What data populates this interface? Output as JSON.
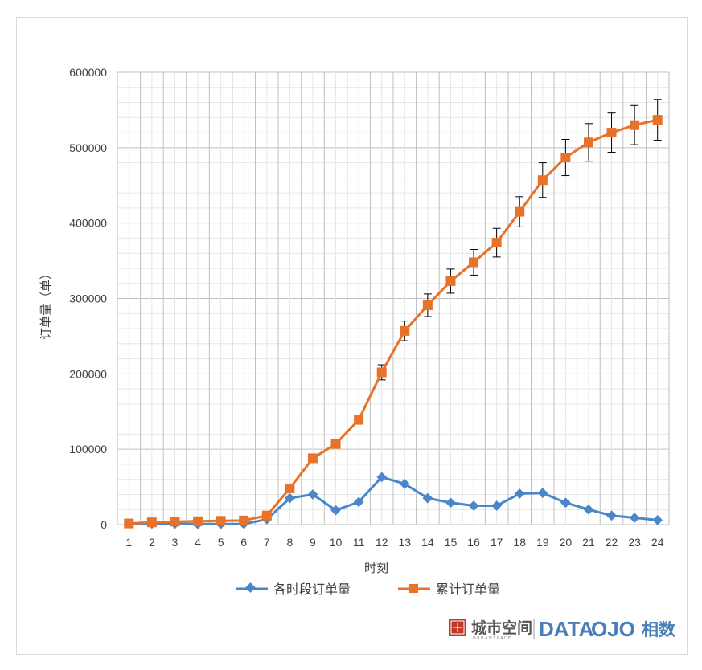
{
  "chart_data": {
    "type": "line",
    "title": "",
    "xlabel": "时刻",
    "ylabel": "订单量（单）",
    "categories": [
      "1",
      "2",
      "3",
      "4",
      "5",
      "6",
      "7",
      "8",
      "9",
      "10",
      "11",
      "12",
      "13",
      "14",
      "15",
      "16",
      "17",
      "18",
      "19",
      "20",
      "21",
      "22",
      "23",
      "24"
    ],
    "ylim": [
      0,
      600000
    ],
    "yticks": [
      "0",
      "100000",
      "200000",
      "300000",
      "400000",
      "500000",
      "600000"
    ],
    "grid": true,
    "legend_position": "bottom",
    "series": [
      {
        "name": "各时段订单量",
        "color": "#4a86c8",
        "marker": "diamond",
        "values": [
          1500,
          1200,
          1000,
          800,
          800,
          900,
          7000,
          35000,
          40000,
          19000,
          30000,
          63000,
          54000,
          35000,
          29000,
          25000,
          25000,
          41000,
          42000,
          29000,
          20000,
          12000,
          9000,
          6000
        ]
      },
      {
        "name": "累计订单量",
        "color": "#e8722a",
        "marker": "square",
        "values": [
          1500,
          3000,
          4000,
          4500,
          5000,
          5500,
          12000,
          48000,
          88000,
          107000,
          139000,
          202000,
          257000,
          291000,
          323000,
          348000,
          374000,
          415000,
          457000,
          487000,
          507000,
          520000,
          530000,
          537000
        ],
        "error": [
          0,
          0,
          0,
          0,
          0,
          0,
          0,
          0,
          0,
          0,
          0,
          10000,
          13000,
          15000,
          16000,
          17000,
          19000,
          20000,
          23000,
          24000,
          25000,
          26000,
          26000,
          27000
        ]
      }
    ]
  },
  "watermark": {
    "seal_text": "城市空间",
    "brand_cn": "城市空间",
    "brand_sub": "URBANSPACE",
    "brand_en_1": "DATA",
    "brand_en_2": "OJO",
    "brand_cn_2": "相数",
    "color": "#4a7ebb",
    "seal_color": "#c0392b"
  }
}
